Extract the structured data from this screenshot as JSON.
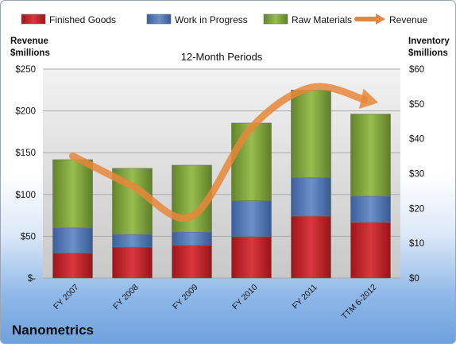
{
  "company": "Nanometrics",
  "chart_data": {
    "type": "bar",
    "stacked": true,
    "title": "12-Month Periods",
    "categories": [
      "FY 2007",
      "FY 2008",
      "FY 2009",
      "FY 2010",
      "FY 2011",
      "TTM 6-2012"
    ],
    "y_left": {
      "label_line1": "Revenue",
      "label_line2": "$millions",
      "ylim": [
        0,
        250
      ],
      "ticks": [
        {
          "value": 0,
          "label": "$-"
        },
        {
          "value": 50,
          "label": "$50"
        },
        {
          "value": 100,
          "label": "$100"
        },
        {
          "value": 150,
          "label": "$150"
        },
        {
          "value": 200,
          "label": "$200"
        },
        {
          "value": 250,
          "label": "$250"
        }
      ]
    },
    "y_right": {
      "label_line1": "Inventory",
      "label_line2": "$millions",
      "ylim": [
        0,
        60
      ],
      "ticks": [
        {
          "value": 0,
          "label": "$0"
        },
        {
          "value": 10,
          "label": "$10"
        },
        {
          "value": 20,
          "label": "$20"
        },
        {
          "value": 30,
          "label": "$30"
        },
        {
          "value": 40,
          "label": "$40"
        },
        {
          "value": 50,
          "label": "$50"
        },
        {
          "value": 60,
          "label": "$60"
        }
      ]
    },
    "series": [
      {
        "name": "Finished Goods",
        "axis": "right",
        "color": "#c0242b",
        "values": [
          7.2,
          8.9,
          9.4,
          11.9,
          17.8,
          16.0
        ]
      },
      {
        "name": "Work in Progress",
        "axis": "right",
        "color": "#4f75b3",
        "values": [
          7.2,
          3.6,
          3.8,
          10.3,
          11.0,
          7.5
        ]
      },
      {
        "name": "Raw Materials",
        "axis": "right",
        "color": "#7ea236",
        "values": [
          19.6,
          19.0,
          19.2,
          22.3,
          25.2,
          23.6
        ]
      },
      {
        "name": "Revenue",
        "axis": "left",
        "type": "line",
        "color": "#e8873a",
        "values": [
          146,
          110,
          74,
          180,
          228,
          212
        ]
      }
    ],
    "legend_position": "top",
    "grid": true
  }
}
